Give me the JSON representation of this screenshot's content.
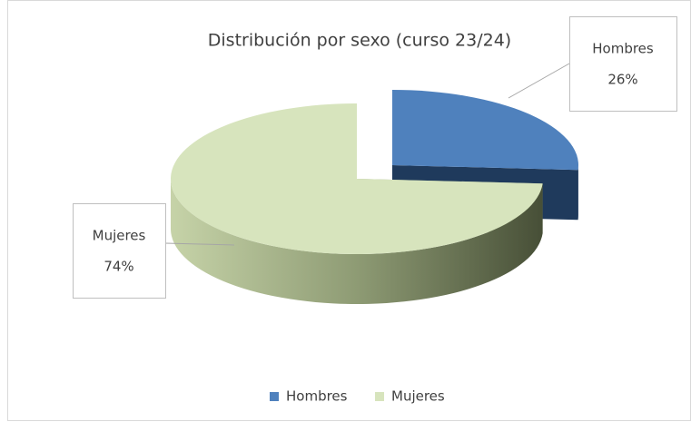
{
  "chart_data": {
    "type": "pie",
    "title": "Distribución por sexo (curso 23/24)",
    "categories": [
      "Hombres",
      "Mujeres"
    ],
    "values": [
      26,
      74
    ],
    "value_labels": [
      "26%",
      "74%"
    ],
    "colors": [
      "#4f81bd",
      "#d7e4bd"
    ],
    "legend": "bottom"
  }
}
